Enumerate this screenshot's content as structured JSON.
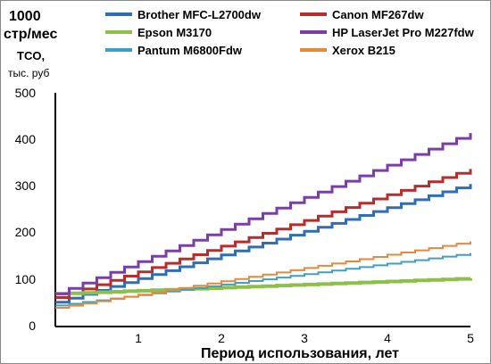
{
  "chart_data": {
    "type": "line",
    "title_lines": [
      "1000",
      "стр/мес"
    ],
    "ylabel_lines": [
      "TCO,",
      "тыс. руб"
    ],
    "xlabel": "Период использования, лет",
    "xlim": [
      0,
      5
    ],
    "ylim": [
      0,
      500
    ],
    "x_ticks": [
      "1",
      "2",
      "3",
      "4",
      "5"
    ],
    "y_ticks": [
      "0",
      "100",
      "200",
      "300",
      "400",
      "500"
    ],
    "grid": false,
    "legend_position": "top",
    "series": [
      {
        "name": "Brother MFC-L2700dw",
        "color": "#2f6db5",
        "start": 52,
        "end": 305
      },
      {
        "name": "Canon  MF267dw",
        "color": "#b52d2d",
        "start": 62,
        "end": 337
      },
      {
        "name": "Epson M3170",
        "color": "#8cc04a",
        "start": 70,
        "end": 103
      },
      {
        "name": "HP LaserJet Pro M227fdw",
        "color": "#7a3fa6",
        "start": 70,
        "end": 414
      },
      {
        "name": "Pantum M6800Fdw",
        "color": "#3fa0bf",
        "start": 45,
        "end": 157
      },
      {
        "name": "Xerox  B215",
        "color": "#e8883a",
        "start": 40,
        "end": 182
      }
    ]
  }
}
